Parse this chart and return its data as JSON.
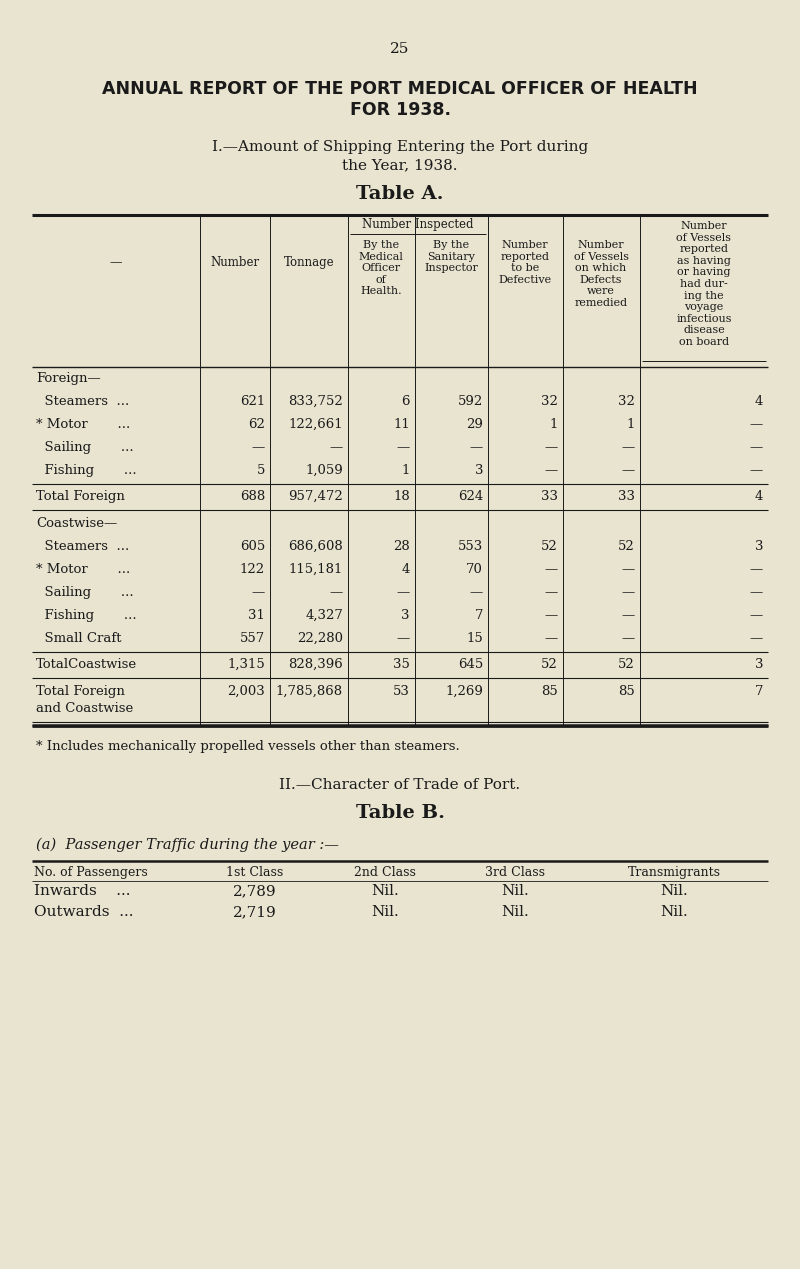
{
  "bg_color": "#e8e4d0",
  "page_number": "25",
  "main_title_line1": "ANNUAL REPORT OF THE PORT MEDICAL OFFICER OF HEALTH",
  "main_title_line2": "FOR 1938.",
  "section1_title": "I.—Amount of Shipping Entering the Port during",
  "section1_title2": "the Year, 1938.",
  "table_a_title": "Table A.",
  "rows": [
    {
      "label": "Foreign—",
      "sub": false,
      "num": "",
      "ton": "",
      "moh": "",
      "si": "",
      "def_": "",
      "rem": "",
      "dis": "",
      "sep_before": false,
      "sep_after": false,
      "double_line": false
    },
    {
      "label": "  Steamers  ...",
      "sub": true,
      "num": "621",
      "ton": "833,752",
      "moh": "6",
      "si": "592",
      "def_": "32",
      "rem": "32",
      "dis": "4",
      "sep_before": false,
      "sep_after": false,
      "double_line": false
    },
    {
      "label": "* Motor       ...",
      "sub": true,
      "num": "62",
      "ton": "122,661",
      "moh": "11",
      "si": "29",
      "def_": "1",
      "rem": "1",
      "dis": "—",
      "sep_before": false,
      "sep_after": false,
      "double_line": false
    },
    {
      "label": "  Sailing       ...",
      "sub": true,
      "num": "—",
      "ton": "—",
      "moh": "—",
      "si": "—",
      "def_": "—",
      "rem": "—",
      "dis": "—",
      "sep_before": false,
      "sep_after": false,
      "double_line": false
    },
    {
      "label": "  Fishing       ...",
      "sub": true,
      "num": "5",
      "ton": "1,059",
      "moh": "1",
      "si": "3",
      "def_": "—",
      "rem": "—",
      "dis": "—",
      "sep_before": false,
      "sep_after": false,
      "double_line": false
    },
    {
      "label": "Total Foreign",
      "sub": false,
      "num": "688",
      "ton": "957,472",
      "moh": "18",
      "si": "624",
      "def_": "33",
      "rem": "33",
      "dis": "4",
      "sep_before": true,
      "sep_after": true,
      "double_line": false
    },
    {
      "label": "Coastwise—",
      "sub": false,
      "num": "",
      "ton": "",
      "moh": "",
      "si": "",
      "def_": "",
      "rem": "",
      "dis": "",
      "sep_before": false,
      "sep_after": false,
      "double_line": false
    },
    {
      "label": "  Steamers  ...",
      "sub": true,
      "num": "605",
      "ton": "686,608",
      "moh": "28",
      "si": "553",
      "def_": "52",
      "rem": "52",
      "dis": "3",
      "sep_before": false,
      "sep_after": false,
      "double_line": false
    },
    {
      "label": "* Motor       ...",
      "sub": true,
      "num": "122",
      "ton": "115,181",
      "moh": "4",
      "si": "70",
      "def_": "—",
      "rem": "—",
      "dis": "—",
      "sep_before": false,
      "sep_after": false,
      "double_line": false
    },
    {
      "label": "  Sailing       ...",
      "sub": true,
      "num": "—",
      "ton": "—",
      "moh": "—",
      "si": "—",
      "def_": "—",
      "rem": "—",
      "dis": "—",
      "sep_before": false,
      "sep_after": false,
      "double_line": false
    },
    {
      "label": "  Fishing       ...",
      "sub": true,
      "num": "31",
      "ton": "4,327",
      "moh": "3",
      "si": "7",
      "def_": "—",
      "rem": "—",
      "dis": "—",
      "sep_before": false,
      "sep_after": false,
      "double_line": false
    },
    {
      "label": "  Small Craft",
      "sub": true,
      "num": "557",
      "ton": "22,280",
      "moh": "—",
      "si": "15",
      "def_": "—",
      "rem": "—",
      "dis": "—",
      "sep_before": false,
      "sep_after": false,
      "double_line": false
    },
    {
      "label": "TotalCoastwise",
      "sub": false,
      "num": "1,315",
      "ton": "828,396",
      "moh": "35",
      "si": "645",
      "def_": "52",
      "rem": "52",
      "dis": "3",
      "sep_before": true,
      "sep_after": true,
      "double_line": false
    },
    {
      "label": "Total Foreign\nand Coastwise",
      "sub": false,
      "num": "2,003",
      "ton": "1,785,868",
      "moh": "53",
      "si": "1,269",
      "def_": "85",
      "rem": "85",
      "dis": "7",
      "sep_before": false,
      "sep_after": true,
      "double_line": true
    }
  ],
  "footnote": "* Includes mechanically propelled vessels other than steamers.",
  "section2_title": "II.—Character of Trade of Port.",
  "table_b_title": "Table B.",
  "table_b_subtitle": "(a)  Passenger Traffic during the year :—",
  "table_b_headers": [
    "No. of Passengers",
    "1st Class",
    "2nd Class",
    "3rd Class",
    "Transmigrants"
  ],
  "table_b_inwards": [
    "Inwards    ...",
    "2,789",
    "Nil.",
    "Nil.",
    "Nil."
  ],
  "table_b_outwards": [
    "Outwards  ...",
    "2,719",
    "Nil.",
    "Nil.",
    "Nil."
  ]
}
